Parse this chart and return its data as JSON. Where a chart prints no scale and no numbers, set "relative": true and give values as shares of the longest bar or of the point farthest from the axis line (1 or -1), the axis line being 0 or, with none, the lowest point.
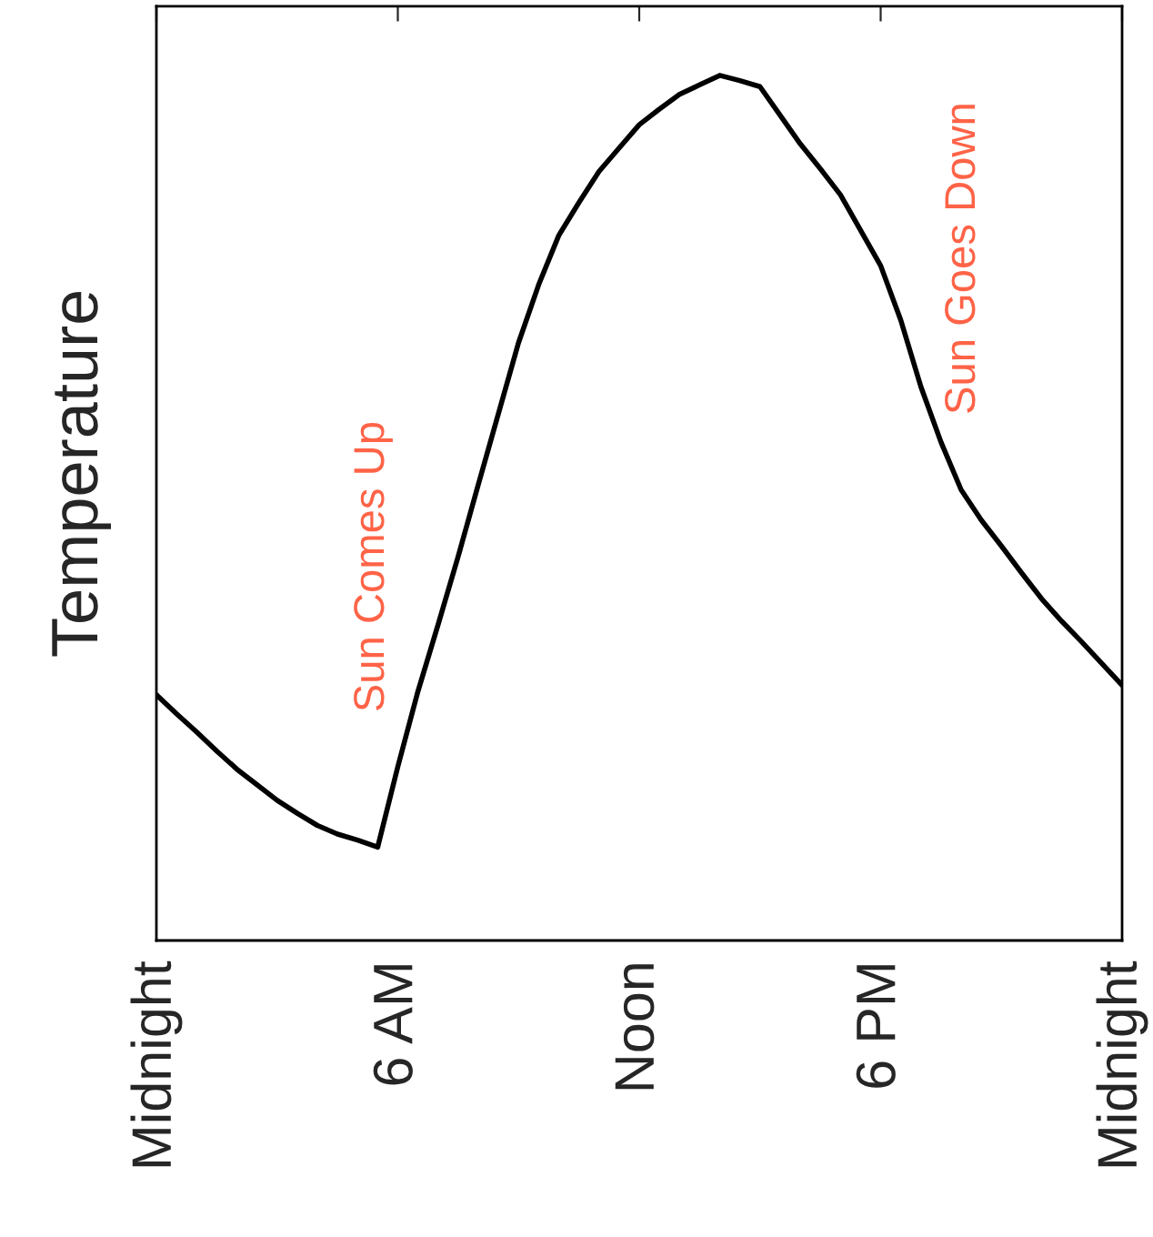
{
  "chart_data": {
    "type": "line",
    "ylabel": "Temperature",
    "relative": true,
    "categories": [
      "Midnight",
      null,
      null,
      null,
      null,
      null,
      null,
      null,
      null,
      null,
      null,
      null,
      "6 AM",
      null,
      null,
      null,
      null,
      null,
      null,
      null,
      null,
      null,
      null,
      null,
      "Noon",
      null,
      null,
      null,
      null,
      null,
      null,
      null,
      null,
      null,
      null,
      null,
      "6 PM",
      null,
      null,
      null,
      null,
      null,
      null,
      null,
      null,
      null,
      null,
      null,
      "Midnight"
    ],
    "series": [
      {
        "color": "#000000",
        "values": [
          0.284,
          0.262,
          0.241,
          0.219,
          0.198,
          0.18,
          0.162,
          0.147,
          0.133,
          0.123,
          0.116,
          0.108,
          0.201,
          0.288,
          0.365,
          0.444,
          0.527,
          0.609,
          0.691,
          0.758,
          0.815,
          0.853,
          0.889,
          0.916,
          0.943,
          0.961,
          0.978,
          0.989,
          1.0,
          0.994,
          0.987,
          0.954,
          0.921,
          0.892,
          0.862,
          0.821,
          0.78,
          0.717,
          0.64,
          0.576,
          0.521,
          0.486,
          0.456,
          0.425,
          0.395,
          0.369,
          0.345,
          0.32,
          0.295
        ]
      }
    ],
    "annotations": [
      "Sun Comes Up",
      "Sun Goes Down"
    ],
    "grid": false,
    "marker": "none",
    "line_style": "solid"
  }
}
